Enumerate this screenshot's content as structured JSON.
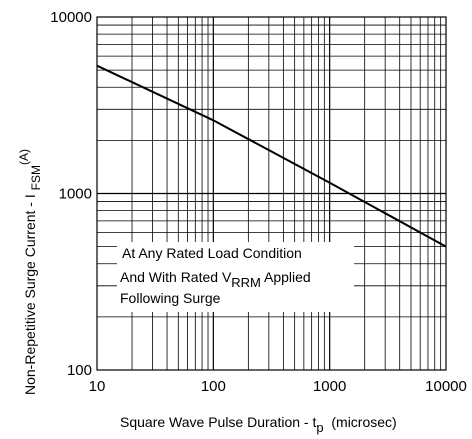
{
  "chart_data": {
    "type": "line",
    "title": "",
    "xscale": "log",
    "yscale": "log",
    "xlim": [
      10,
      10000
    ],
    "ylim": [
      100,
      10000
    ],
    "grid": true,
    "xticks": [
      "10",
      "100",
      "1000",
      "10000"
    ],
    "yticks": [
      "100",
      "1000",
      "10000"
    ],
    "xlabel": {
      "main": "Square Wave Pulse Duration - t",
      "sub": "p",
      "tail": "  (microsec)"
    },
    "ylabel": {
      "main": "Non-Repetitive Surge Current - I ",
      "sub": "FSM",
      "sup": "(A)"
    },
    "series": [
      {
        "x": [
          10,
          100,
          1000,
          10000
        ],
        "y": [
          5300,
          2600,
          1150,
          500
        ]
      }
    ],
    "annotation": {
      "line1": "At Any Rated Load Condition",
      "line2_pre": "And With Rated V",
      "line2_sub": "RRM",
      "line2_post": " Applied",
      "line3": "Following Surge"
    },
    "colors": {
      "line": "#000000",
      "grid": "#000000",
      "background": "#ffffff"
    }
  }
}
